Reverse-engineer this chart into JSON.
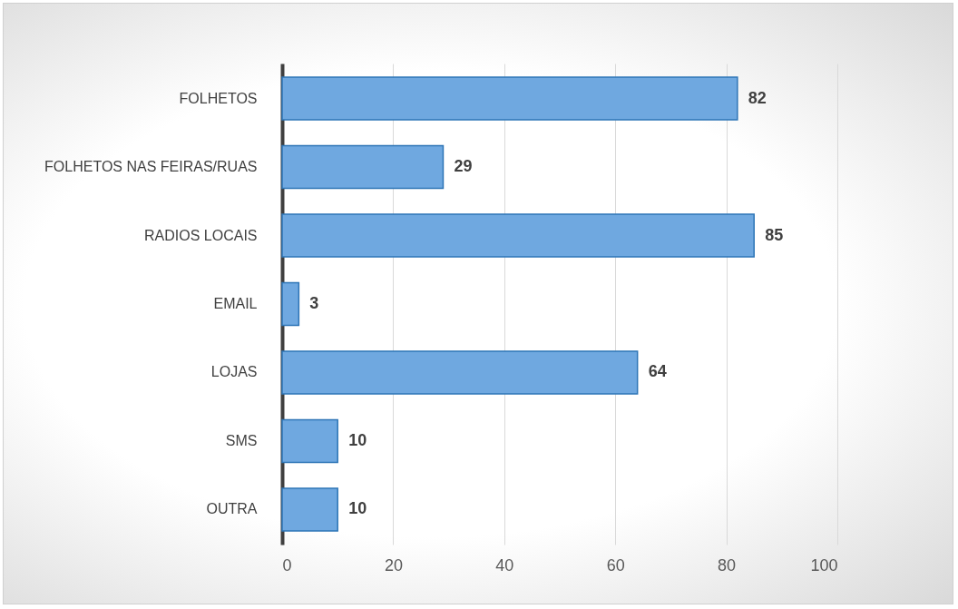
{
  "chart_data": {
    "type": "bar",
    "orientation": "horizontal",
    "categories": [
      "FOLHETOS",
      "FOLHETOS NAS FEIRAS/RUAS",
      "RADIOS LOCAIS",
      "EMAIL",
      "LOJAS",
      "SMS",
      "OUTRA"
    ],
    "values": [
      82,
      29,
      85,
      3,
      64,
      10,
      10
    ],
    "color": "#6fa8e0",
    "xlim": [
      0,
      100
    ],
    "xticks": [
      0,
      20,
      40,
      60,
      80,
      100
    ],
    "grid": "x",
    "data_labels": true
  }
}
